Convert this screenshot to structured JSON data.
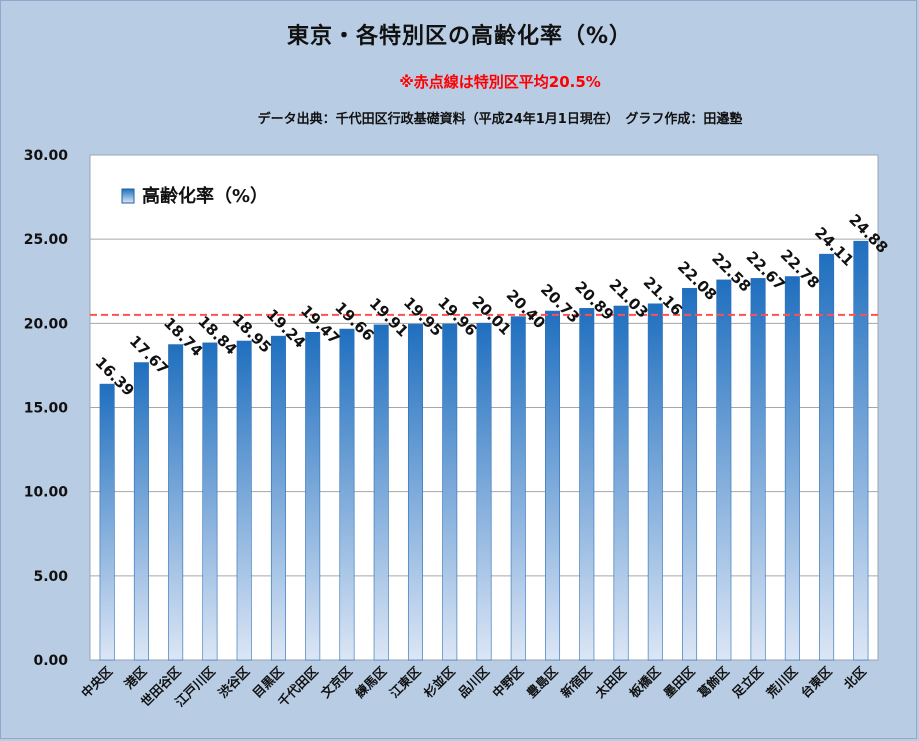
{
  "header": {
    "title": "東京・各特別区の高齢化率（%）",
    "note": "※赤点線は特別区平均20.5%",
    "source": "データ出典：千代田区行政基礎資料（平成24年1月1日現在）　グラフ作成：田邉塾"
  },
  "colors": {
    "background": "#b8cce4",
    "plot_background": "#ffffff",
    "bar_top": "#1f6fbf",
    "bar_bottom": "#dce6f5",
    "average_line": "#ff4040",
    "note": "#ff0000"
  },
  "chart_data": {
    "type": "bar",
    "categories": [
      "中央区",
      "港区",
      "世田谷区",
      "江戸川区",
      "渋谷区",
      "目黒区",
      "千代田区",
      "文京区",
      "練馬区",
      "江東区",
      "杉並区",
      "品川区",
      "中野区",
      "豊島区",
      "新宿区",
      "太田区",
      "板橋区",
      "墨田区",
      "葛飾区",
      "足立区",
      "荒川区",
      "台東区",
      "北区"
    ],
    "series": [
      {
        "name": "高齢化率（%）",
        "values": [
          16.39,
          17.67,
          18.74,
          18.84,
          18.95,
          19.24,
          19.47,
          19.66,
          19.91,
          19.95,
          19.96,
          20.01,
          20.4,
          20.73,
          20.89,
          21.03,
          21.16,
          22.08,
          22.58,
          22.67,
          22.78,
          24.11,
          24.88
        ]
      }
    ],
    "ylim": [
      0,
      30
    ],
    "yticks": [
      "0.00",
      "5.00",
      "10.00",
      "15.00",
      "20.00",
      "25.00",
      "30.00"
    ],
    "reference_line": {
      "value": 20.5,
      "style": "dashed"
    },
    "grid": true,
    "legend": "top-left",
    "data_labels": true,
    "xlabel": "",
    "ylabel": ""
  }
}
